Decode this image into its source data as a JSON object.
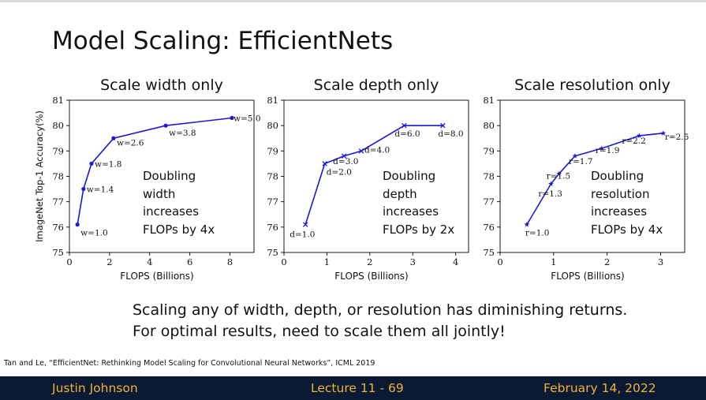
{
  "slide": {
    "title": "Model Scaling: EfficientNets",
    "summary_line1": "Scaling any of width, depth, or resolution has diminishing returns.",
    "summary_line2": "For optimal results, need to scale them all jointly!",
    "citation": "Tan and Le, “EfficientNet: Rethinking Model Scaling for Convolutional Neural Networks”, ICML 2019"
  },
  "footer": {
    "author": "Justin Johnson",
    "lecture": "Lecture 11 - 69",
    "date": "February 14, 2022"
  },
  "colors": {
    "line": "#1a1ad6",
    "footer_bg": "#0b1a33",
    "footer_text": "#f2b134"
  },
  "chart_data": [
    {
      "type": "line",
      "title": "Scale width only",
      "xlabel": "FLOPS (Billions)",
      "ylabel": "ImageNet Top-1 Accuracy(%)",
      "xlim": [
        0,
        9.2
      ],
      "ylim": [
        75,
        81
      ],
      "xticks": [
        0,
        2,
        4,
        6,
        8
      ],
      "yticks": [
        75,
        76,
        77,
        78,
        79,
        80,
        81
      ],
      "marker": "dot",
      "points": [
        {
          "x": 0.4,
          "y": 76.1,
          "label": "w=1.0"
        },
        {
          "x": 0.7,
          "y": 77.5,
          "label": "w=1.4"
        },
        {
          "x": 1.1,
          "y": 78.5,
          "label": "w=1.8"
        },
        {
          "x": 2.2,
          "y": 79.5,
          "label": "w=2.6"
        },
        {
          "x": 4.8,
          "y": 80.0,
          "label": "w=3.8"
        },
        {
          "x": 8.1,
          "y": 80.3,
          "label": "w=5.0"
        }
      ],
      "note": "Doubling\nwidth\nincreases\nFLOPs by 4x"
    },
    {
      "type": "line",
      "title": "Scale depth only",
      "xlabel": "FLOPS (Billions)",
      "ylabel": "",
      "xlim": [
        0,
        4.3
      ],
      "ylim": [
        75,
        81
      ],
      "xticks": [
        0,
        1,
        2,
        3,
        4
      ],
      "yticks": [
        75,
        76,
        77,
        78,
        79,
        80,
        81
      ],
      "marker": "x",
      "points": [
        {
          "x": 0.5,
          "y": 76.1,
          "label": "d=1.0"
        },
        {
          "x": 0.95,
          "y": 78.5,
          "label": "d=2.0"
        },
        {
          "x": 1.4,
          "y": 78.8,
          "label": "d=3.0"
        },
        {
          "x": 1.8,
          "y": 79.0,
          "label": "d=4.0"
        },
        {
          "x": 2.8,
          "y": 80.0,
          "label": "d=6.0"
        },
        {
          "x": 3.7,
          "y": 80.0,
          "label": "d=8.0"
        }
      ],
      "note": "Doubling\ndepth\nincreases\nFLOPs by 2x"
    },
    {
      "type": "line",
      "title": "Scale resolution only",
      "xlabel": "FLOPS (Billions)",
      "ylabel": "",
      "xlim": [
        0,
        3.45
      ],
      "ylim": [
        75,
        81
      ],
      "xticks": [
        0,
        1,
        2,
        3
      ],
      "yticks": [
        75,
        76,
        77,
        78,
        79,
        80,
        81
      ],
      "marker": "star",
      "points": [
        {
          "x": 0.5,
          "y": 76.1,
          "label": "r=1.0"
        },
        {
          "x": 0.95,
          "y": 77.7,
          "label": "r=1.3"
        },
        {
          "x": 1.1,
          "y": 78.1,
          "label": "r=1.5"
        },
        {
          "x": 1.4,
          "y": 78.8,
          "label": "r=1.7"
        },
        {
          "x": 1.9,
          "y": 79.1,
          "label": "r=1.9"
        },
        {
          "x": 2.6,
          "y": 79.6,
          "label": "r=2.2"
        },
        {
          "x": 3.05,
          "y": 79.7,
          "label": "r=2.5"
        }
      ],
      "note": "Doubling\nresolution\nincreases\nFLOPs by 4x"
    }
  ]
}
